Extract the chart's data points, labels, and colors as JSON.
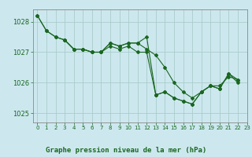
{
  "title": "Graphe pression niveau de la mer (hPa)",
  "bg_color": "#cce8ee",
  "grid_color": "#aacccc",
  "line_color": "#1a6620",
  "xlim": [
    -0.5,
    23
  ],
  "ylim": [
    1024.7,
    1028.4
  ],
  "yticks": [
    1025,
    1026,
    1027,
    1028
  ],
  "xticks": [
    0,
    1,
    2,
    3,
    4,
    5,
    6,
    7,
    8,
    9,
    10,
    11,
    12,
    13,
    14,
    15,
    16,
    17,
    18,
    19,
    20,
    21,
    22,
    23
  ],
  "series2": [
    {
      "x": [
        0,
        1,
        2,
        3,
        4,
        5,
        6,
        7,
        8,
        9,
        10,
        11,
        12,
        13
      ],
      "y": [
        1028.2,
        1027.7,
        1027.5,
        1027.4,
        1027.1,
        1027.1,
        1027.0,
        1027.0,
        1027.3,
        1027.2,
        1027.3,
        1027.3,
        1027.5,
        1025.6
      ]
    },
    {
      "x": [
        0,
        1,
        2,
        3,
        4,
        5,
        6,
        7,
        8,
        9,
        10,
        11,
        12,
        13,
        14,
        15,
        16,
        17,
        18,
        19,
        20,
        21,
        22
      ],
      "y": [
        1028.2,
        1027.7,
        1027.5,
        1027.4,
        1027.1,
        1027.1,
        1027.0,
        1027.0,
        1027.3,
        1027.2,
        1027.3,
        1027.3,
        1027.1,
        1026.9,
        1026.5,
        1026.0,
        1025.7,
        1025.5,
        1025.7,
        1025.9,
        1025.9,
        1026.2,
        1026.1
      ]
    },
    {
      "x": [
        3,
        4,
        5,
        6,
        7,
        8,
        9,
        10,
        11,
        12,
        13,
        14,
        15,
        16,
        17,
        18,
        19,
        20,
        21,
        22
      ],
      "y": [
        1027.4,
        1027.1,
        1027.1,
        1027.0,
        1027.0,
        1027.2,
        1027.1,
        1027.2,
        1027.0,
        1027.0,
        1025.6,
        1025.7,
        1025.5,
        1025.4,
        1025.3,
        1025.7,
        1025.9,
        1025.8,
        1026.3,
        1026.0
      ]
    },
    {
      "x": [
        13,
        14,
        15,
        16,
        17,
        18,
        19,
        20,
        21,
        22
      ],
      "y": [
        1025.6,
        1025.7,
        1025.5,
        1025.4,
        1025.3,
        1025.7,
        1025.9,
        1025.8,
        1026.3,
        1026.1
      ]
    }
  ]
}
